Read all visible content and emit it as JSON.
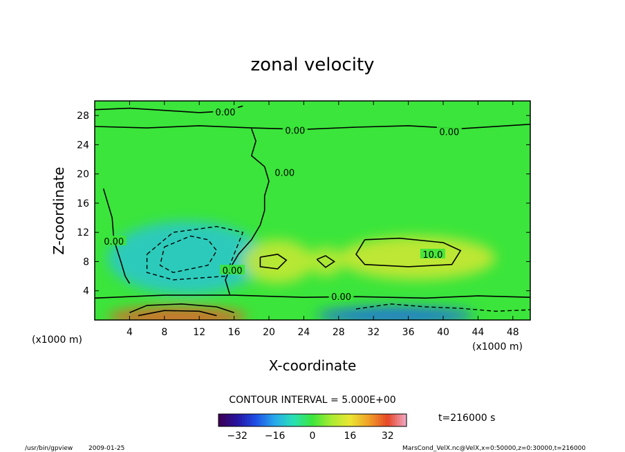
{
  "chart_data": {
    "type": "heatmap",
    "title": "zonal velocity",
    "xlabel": "X-coordinate",
    "ylabel": "Z-coordinate",
    "x_unit_left": "(x1000 m)",
    "x_unit_right": "(x1000 m)",
    "xlim": [
      0,
      50
    ],
    "ylim": [
      0,
      30
    ],
    "xticks": [
      4,
      8,
      12,
      16,
      20,
      24,
      28,
      32,
      36,
      40,
      44,
      48
    ],
    "yticks": [
      4,
      8,
      12,
      16,
      20,
      24,
      28
    ],
    "contour_interval_text": "CONTOUR INTERVAL = 5.000E+00",
    "time_text": "t=216000 s",
    "colorbar": {
      "range": [
        -40,
        40
      ],
      "ticks": [
        -32,
        -16,
        0,
        16,
        32
      ],
      "tick_labels": [
        "−32",
        "−16",
        "0",
        "16",
        "32"
      ]
    },
    "contour_labels": [
      {
        "text": "0.00",
        "x": 15.0,
        "y": 28.5
      },
      {
        "text": "0.00",
        "x": 23.0,
        "y": 26.0
      },
      {
        "text": "0.00",
        "x": 40.7,
        "y": 25.8
      },
      {
        "text": "0.00",
        "x": 21.8,
        "y": 20.2
      },
      {
        "text": "0.00",
        "x": 2.2,
        "y": 10.8
      },
      {
        "text": "0.00",
        "x": 15.8,
        "y": 6.8
      },
      {
        "text": "0.00",
        "x": 28.3,
        "y": 3.2
      },
      {
        "text": "10.0",
        "x": 38.8,
        "y": 9.0
      }
    ],
    "features": [
      {
        "kind": "min",
        "x": 10.5,
        "y": 8.5,
        "value": -12
      },
      {
        "kind": "max",
        "x": 21.0,
        "y": 8.0,
        "value": 12
      },
      {
        "kind": "max",
        "x": 37.0,
        "y": 8.5,
        "value": 13
      },
      {
        "kind": "max",
        "x": 26.5,
        "y": 8.0,
        "value": 11
      },
      {
        "kind": "max",
        "x": 9.5,
        "y": 0.4,
        "value": 30
      },
      {
        "kind": "min",
        "x": 34.5,
        "y": 0.6,
        "value": -22
      }
    ]
  },
  "footer": {
    "program": "/usr/bin/gpview",
    "date": "2009-01-25",
    "source": "MarsCond_VelX.nc@VelX,x=0:50000,z=0:30000,t=216000"
  },
  "colors": {
    "background_field": "#3be53b",
    "strong_positive": "#e8b400",
    "strong_negative": "#1fa6e0"
  }
}
